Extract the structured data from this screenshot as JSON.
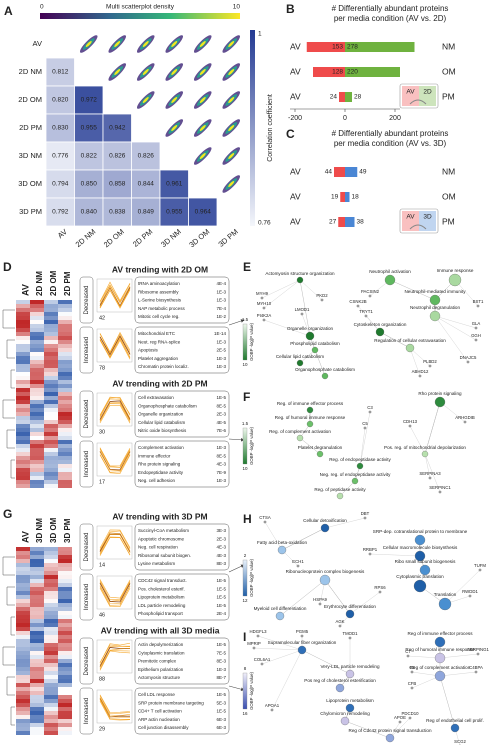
{
  "panels": {
    "A": {
      "letter": "A",
      "density_label": "Multi scatterplot density",
      "density_min": 0,
      "density_max": 10,
      "conditions": [
        "AV",
        "2D NM",
        "2D OM",
        "2D PM",
        "3D NM",
        "3D OM",
        "3D PM"
      ],
      "correlations": [
        [
          0.812
        ],
        [
          0.82,
          0.972
        ],
        [
          0.83,
          0.955,
          0.942
        ],
        [
          0.776,
          0.822,
          0.826,
          0.826
        ],
        [
          0.794,
          0.85,
          0.858,
          0.844,
          0.961
        ],
        [
          0.792,
          0.84,
          0.838,
          0.849,
          0.955,
          0.964
        ]
      ],
      "correlation_labels": [
        [
          "0.812"
        ],
        [
          "0.820",
          "0.972"
        ],
        [
          "0.830",
          "0.955",
          "0.942"
        ],
        [
          "0.776",
          "0.822",
          "0.826",
          "0.826"
        ],
        [
          "0.794",
          "0.850",
          "0.858",
          "0.844",
          "0.961"
        ],
        [
          "0.792",
          "0.840",
          "0.838",
          "0.849",
          "0.955",
          "0.964"
        ]
      ],
      "colorbar_label": "Correlation coefficient",
      "colorbar_max": 1,
      "colorbar_min": 0.76
    },
    "B": {
      "letter": "B",
      "title": [
        "# Differentially abundant proteins",
        "per media condition (AV vs. 2D)"
      ],
      "rows": [
        {
          "left": "AV",
          "right": "NM",
          "down": 153,
          "up": 278
        },
        {
          "left": "AV",
          "right": "OM",
          "down": 128,
          "up": 220
        },
        {
          "left": "AV",
          "right": "PM",
          "down": 24,
          "up": 28
        }
      ],
      "xticks": [
        -200,
        0,
        200
      ],
      "legend": [
        "AV",
        "2D"
      ],
      "colors": {
        "down": "#ef4b4b",
        "up": "#6fb23f"
      }
    },
    "C": {
      "letter": "C",
      "title": [
        "# Differentially abundant proteins",
        "per media condition (AV vs. 3D)"
      ],
      "rows": [
        {
          "left": "AV",
          "right": "NM",
          "down": 44,
          "up": 49
        },
        {
          "left": "AV",
          "right": "OM",
          "down": 19,
          "up": 18
        },
        {
          "left": "AV",
          "right": "PM",
          "down": 27,
          "up": 38
        }
      ],
      "legend": [
        "AV",
        "3D"
      ],
      "colors": {
        "down": "#ef4b4b",
        "up": "#4a86d4"
      }
    },
    "D": {
      "letter": "D",
      "columns": [
        "AV",
        "2D NM",
        "2D OM",
        "2D PM"
      ],
      "sections": [
        {
          "title": "AV trending with 2D OM",
          "boxes": [
            {
              "direction": "Decreased",
              "count": 42,
              "terms": [
                {
                  "name": "tRNA aminoacylation",
                  "p": "4E-4"
                },
                {
                  "name": "Ribosome assembly",
                  "p": "1E-3"
                },
                {
                  "name": "L-Serine biosynthesis",
                  "p": "1E-3"
                },
                {
                  "name": "NAP metabolic process",
                  "p": "7E-4"
                },
                {
                  "name": "Mitotic cell cycle reg.",
                  "p": "1E-2"
                }
              ]
            },
            {
              "direction": "Increased",
              "count": 78,
              "terms": [
                {
                  "name": "Mitochondrial ETC",
                  "p": "1E-14"
                },
                {
                  "name": "Neut. reg RNA-splice",
                  "p": "1E-3"
                },
                {
                  "name": "Apoptosis",
                  "p": "2E-5"
                },
                {
                  "name": "Platelet aggregation",
                  "p": "1E-3"
                },
                {
                  "name": "Chromatin protein localiz.",
                  "p": "1E-3"
                }
              ]
            }
          ]
        },
        {
          "title": "AV trending with 2D PM",
          "boxes": [
            {
              "direction": "Decreased",
              "count": 30,
              "terms": [
                {
                  "name": "Cell extravasation",
                  "p": "1E-5"
                },
                {
                  "name": "Organophosphate catabolism",
                  "p": "8E-5"
                },
                {
                  "name": "Organelle organization",
                  "p": "2E-3"
                },
                {
                  "name": "Cellular lipid catabolism",
                  "p": "4E-5"
                },
                {
                  "name": "Nitric oxide biosynthesis",
                  "p": "7E-6"
                }
              ]
            },
            {
              "direction": "Increased",
              "count": 17,
              "terms": [
                {
                  "name": "Complement activation",
                  "p": "1E-3"
                },
                {
                  "name": "Immune effector",
                  "p": "8E-5"
                },
                {
                  "name": "Rho protein signaling",
                  "p": "4E-3"
                },
                {
                  "name": "Endopeptidase activity",
                  "p": "7E-9"
                },
                {
                  "name": "Neg. cell adhesion",
                  "p": "1E-3"
                }
              ]
            }
          ]
        }
      ]
    },
    "E": {
      "letter": "E",
      "colorbar_label": "GOBP -log(P value)",
      "colorbar_min": 1.5,
      "colorbar_max": 10,
      "terms": [
        "Actomyosin structure organization",
        "Neutrophil activation",
        "Immune response",
        "Organelle organization",
        "Neutrophil-mediated immunity",
        "Neutrophil degranulation",
        "Cytoskeleton organization",
        "Phospholipid catabolism",
        "Regulation of cellular extravasation",
        "Cellular lipid catabolism",
        "Organophosphate catabolism"
      ],
      "genes": [
        "MYH9",
        "MYH10",
        "PI4K2A",
        "PKD2",
        "LMOD1",
        "PACSIN2",
        "CSNK2B",
        "TRYT1",
        "PLBD2",
        "ABHD12",
        "BST1",
        "GLA",
        "GGH",
        "DNAJC5"
      ]
    },
    "F": {
      "letter": "F",
      "colorbar_label": "GOBP -log(P value)",
      "colorbar_min": 1.5,
      "colorbar_max": 10,
      "terms": [
        "Reg. of immune effector process",
        "Reg. of humoral immune response",
        "Reg. of complement activation",
        "Rho protein signaling",
        "Platelet degranulation",
        "Pos. reg. of mitochondrial depolarization",
        "Reg. of endopeptidase activity",
        "Neg. reg. of endopeptidase activity",
        "Reg. of peptidase activity"
      ],
      "genes": [
        "C3",
        "C5",
        "CDH13",
        "ARHGDIB",
        "SERPINA3",
        "SERPINC1"
      ]
    },
    "G": {
      "letter": "G",
      "columns": [
        "AV",
        "3D NM",
        "3D OM",
        "3D PM"
      ],
      "sections": [
        {
          "title": "AV trending with 3D PM",
          "boxes": [
            {
              "direction": "Decreased",
              "count": 14,
              "terms": [
                {
                  "name": "Succinyl-CoA metabolism",
                  "p": "3E-3"
                },
                {
                  "name": "Apoptotic chromosome",
                  "p": "2E-3"
                },
                {
                  "name": "Neg. cell respiration",
                  "p": "4E-3"
                },
                {
                  "name": "Ribosomal subunit biogen.",
                  "p": "4E-3"
                },
                {
                  "name": "Lysine metabolism",
                  "p": "8E-3"
                }
              ]
            },
            {
              "direction": "Increased",
              "count": 46,
              "terms": [
                {
                  "name": "CDC42 signal transduct.",
                  "p": "1E-5"
                },
                {
                  "name": "Pos. cholesterol esterif.",
                  "p": "1E-5"
                },
                {
                  "name": "Lipoprotein metabolism",
                  "p": "1E-5"
                },
                {
                  "name": "LDL particle remodeling",
                  "p": "1E-5"
                },
                {
                  "name": "Phospholipid transport",
                  "p": "2E-4"
                }
              ]
            }
          ]
        },
        {
          "title": "AV trending with all 3D media",
          "boxes": [
            {
              "direction": "Decreased",
              "count": 88,
              "terms": [
                {
                  "name": "Actin depolymerization",
                  "p": "1E-5"
                },
                {
                  "name": "Cytoplasmic translation",
                  "p": "7E-5"
                },
                {
                  "name": "Premitotic complex",
                  "p": "8E-3"
                },
                {
                  "name": "Epithelium polarization",
                  "p": "1E-3"
                },
                {
                  "name": "Actomyosin structure",
                  "p": "8E-7"
                }
              ]
            },
            {
              "direction": "Increased",
              "count": 29,
              "terms": [
                {
                  "name": "Cell LDL response",
                  "p": "1E-5"
                },
                {
                  "name": "SRP protein membrane targeting",
                  "p": "5E-3"
                },
                {
                  "name": "CD4+ T cell activation",
                  "p": "1E-5"
                },
                {
                  "name": "ARP actin nucleation",
                  "p": "6E-3"
                },
                {
                  "name": "Cell junction disassembly",
                  "p": "6E-3"
                }
              ]
            }
          ]
        }
      ]
    },
    "H": {
      "letter": "H",
      "colorbar_label": "GOBP -log(P value)",
      "colorbar_min": 2,
      "colorbar_max": 12,
      "terms": [
        "Cellular detoxification",
        "SRP-dep. cotranslational protein to membrane",
        "Fatty acid beta-oxidation",
        "Cellular macromolecule biosynthesis",
        "Ribo small subunit biogenesis",
        "Ribonucleoprotein complex biogenesis",
        "Cytoplasmic translation",
        "Translation",
        "Myeloid cell differentiation",
        "Erythrocyte differentiation"
      ],
      "genes": [
        "CTSA",
        "DBT",
        "ECH1",
        "RRBP1",
        "RPS6",
        "TUFM",
        "RWDD1",
        "HSPA9",
        "AGK"
      ]
    },
    "I": {
      "letter": "I",
      "colorbar_label": "GOBP -log(P value)",
      "colorbar_min": 8,
      "colorbar_max": 16,
      "terms": [
        "Supramolecular fiber organization",
        "Very-LDL particle remodeling",
        "Pos reg of cholesterol esterification",
        "Lipoprotein metabolism",
        "Chylomicron remodeling",
        "Reg of Cdc42 protein signal transduction",
        "Reg of immune effector process",
        "Reg of humoral immune response",
        "Reg of complement activation",
        "Reg of endothelial cell prolif."
      ],
      "genes": [
        "HDGFL3",
        "PGM5",
        "TMOD1",
        "MPRIP",
        "COL6A1",
        "APOA1",
        "APOE",
        "C7",
        "SERPING1",
        "C5",
        "C4BPA",
        "CFB",
        "PDCD10",
        "SCG2"
      ]
    }
  }
}
